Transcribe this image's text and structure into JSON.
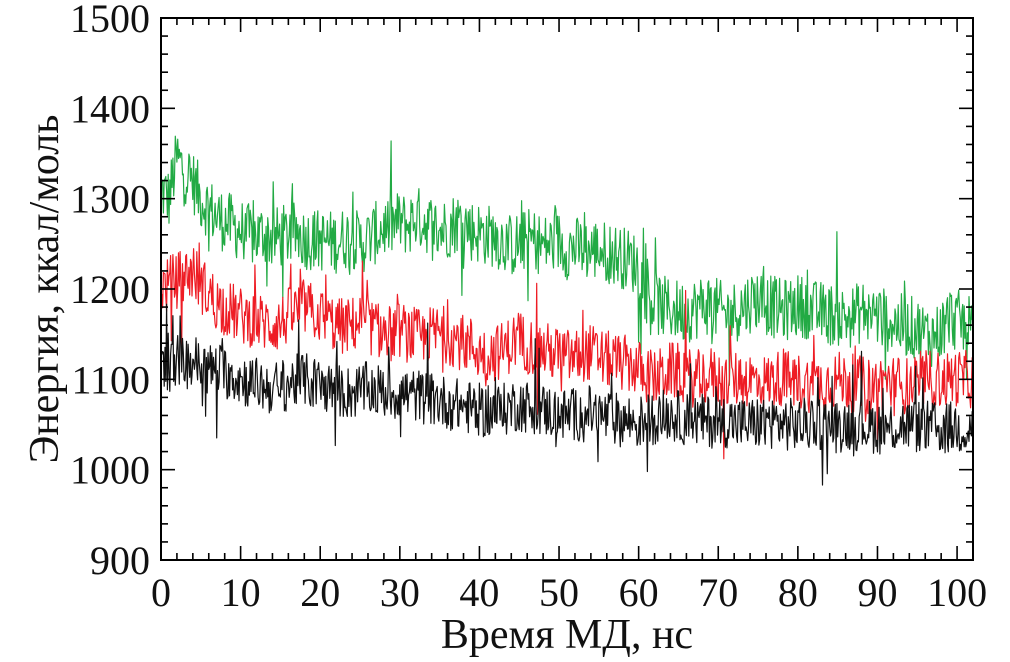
{
  "chart_data": {
    "type": "line",
    "title": "",
    "xlabel": "Время МД, нс",
    "ylabel": "Энергия, ккал/моль",
    "xlim": [
      0,
      102
    ],
    "ylim": [
      900,
      1500
    ],
    "x_ticks": [
      0,
      10,
      20,
      30,
      40,
      50,
      60,
      70,
      80,
      90,
      100
    ],
    "y_ticks": [
      900,
      1000,
      1100,
      1200,
      1300,
      1400,
      1500
    ],
    "grid": false,
    "legend": "none",
    "series_step_ns": 1,
    "series": [
      {
        "color": "#22aa44",
        "values": [
          1310,
          1300,
          1345,
          1330,
          1320,
          1300,
          1290,
          1280,
          1275,
          1270,
          1265,
          1260,
          1258,
          1262,
          1255,
          1258,
          1260,
          1262,
          1256,
          1255,
          1254,
          1253,
          1252,
          1256,
          1258,
          1250,
          1255,
          1262,
          1268,
          1270,
          1275,
          1270,
          1280,
          1276,
          1270,
          1265,
          1268,
          1274,
          1275,
          1265,
          1262,
          1260,
          1258,
          1252,
          1248,
          1250,
          1255,
          1254,
          1248,
          1250,
          1252,
          1245,
          1246,
          1244,
          1242,
          1245,
          1240,
          1238,
          1235,
          1232,
          1225,
          1195,
          1185,
          1180,
          1178,
          1176,
          1175,
          1178,
          1182,
          1184,
          1176,
          1172,
          1175,
          1180,
          1186,
          1190,
          1184,
          1180,
          1176,
          1178,
          1182,
          1180,
          1175,
          1174,
          1172,
          1170,
          1168,
          1170,
          1175,
          1176,
          1170,
          1166,
          1162,
          1160,
          1158,
          1156,
          1150,
          1148,
          1155,
          1170,
          1165,
          1162,
          1160
        ],
        "spread": 35
      },
      {
        "color": "#ee1c24",
        "values": [
          1200,
          1205,
          1210,
          1215,
          1220,
          1205,
          1195,
          1185,
          1180,
          1175,
          1170,
          1168,
          1165,
          1162,
          1160,
          1162,
          1170,
          1175,
          1180,
          1175,
          1170,
          1165,
          1160,
          1158,
          1160,
          1165,
          1160,
          1155,
          1152,
          1150,
          1155,
          1150,
          1148,
          1145,
          1150,
          1152,
          1148,
          1145,
          1140,
          1138,
          1130,
          1128,
          1130,
          1132,
          1140,
          1145,
          1138,
          1135,
          1132,
          1130,
          1128,
          1125,
          1124,
          1128,
          1130,
          1125,
          1122,
          1120,
          1118,
          1116,
          1112,
          1105,
          1100,
          1105,
          1110,
          1108,
          1104,
          1100,
          1102,
          1105,
          1100,
          1098,
          1100,
          1102,
          1100,
          1098,
          1096,
          1100,
          1102,
          1100,
          1098,
          1096,
          1094,
          1095,
          1098,
          1100,
          1098,
          1096,
          1094,
          1092,
          1095,
          1098,
          1096,
          1094,
          1092,
          1095,
          1100,
          1102,
          1098,
          1100,
          1102,
          1100,
          1100
        ],
        "spread": 32
      },
      {
        "color": "#111111",
        "values": [
          1110,
          1115,
          1120,
          1118,
          1122,
          1115,
          1110,
          1112,
          1108,
          1105,
          1100,
          1098,
          1095,
          1092,
          1090,
          1092,
          1095,
          1098,
          1100,
          1096,
          1094,
          1090,
          1088,
          1086,
          1085,
          1088,
          1090,
          1088,
          1086,
          1084,
          1085,
          1084,
          1082,
          1080,
          1078,
          1076,
          1074,
          1072,
          1070,
          1068,
          1066,
          1064,
          1065,
          1066,
          1070,
          1072,
          1070,
          1068,
          1066,
          1064,
          1062,
          1060,
          1061,
          1062,
          1064,
          1060,
          1058,
          1056,
          1055,
          1054,
          1052,
          1055,
          1058,
          1060,
          1062,
          1058,
          1056,
          1055,
          1054,
          1053,
          1055,
          1054,
          1052,
          1051,
          1050,
          1052,
          1054,
          1053,
          1051,
          1050,
          1049,
          1050,
          1052,
          1051,
          1049,
          1048,
          1050,
          1051,
          1050,
          1048,
          1047,
          1046,
          1048,
          1050,
          1049,
          1048,
          1047,
          1046,
          1045,
          1046,
          1047,
          1046,
          1045
        ],
        "spread": 30
      }
    ]
  }
}
